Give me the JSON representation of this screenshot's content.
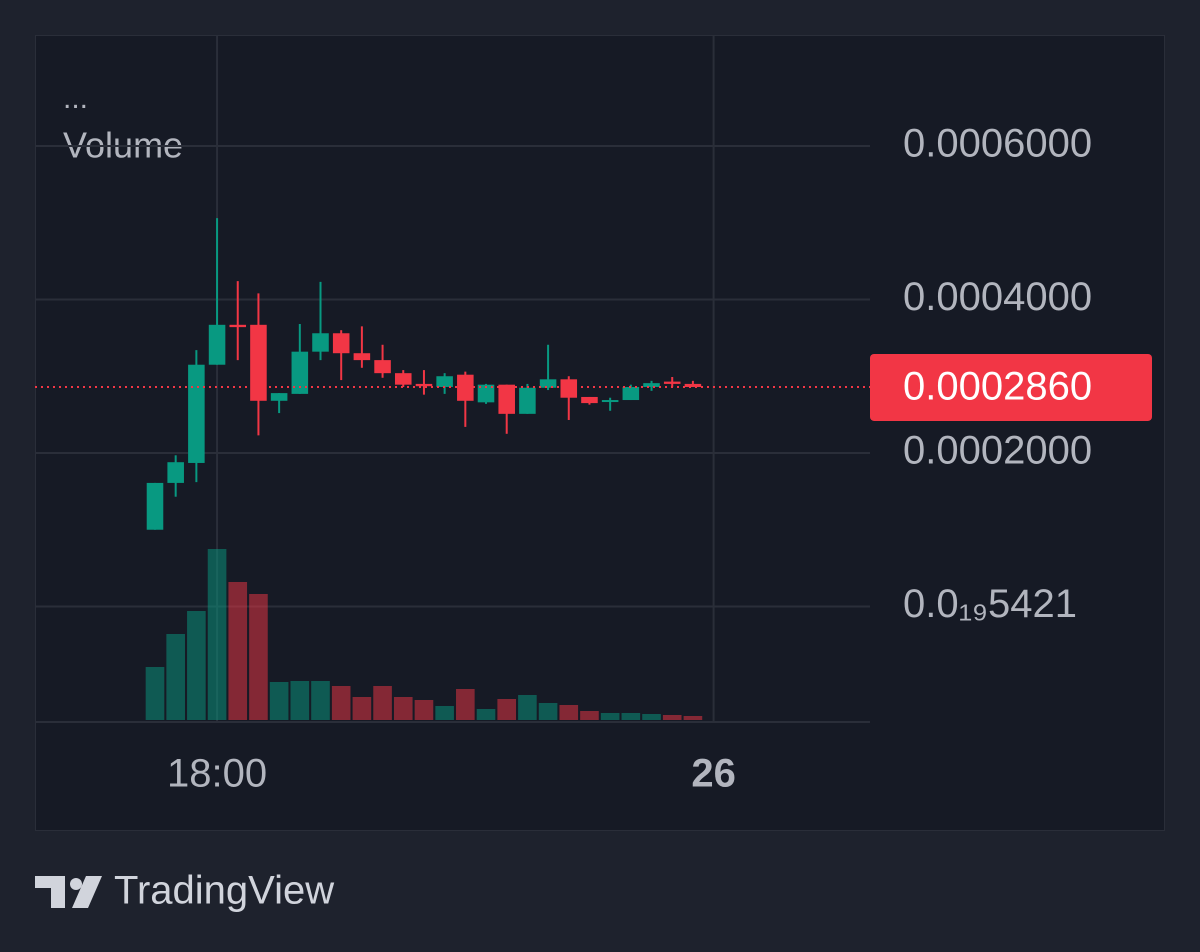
{
  "chart_data": {
    "type": "candlestick",
    "legend_title": "...",
    "volume_label": "Volume",
    "x": [
      0,
      1,
      2,
      3,
      4,
      5,
      6,
      7,
      8,
      9,
      10,
      11,
      12,
      13,
      14,
      15,
      16,
      17,
      18,
      19,
      20,
      21,
      22,
      23,
      24,
      25,
      26
    ],
    "open": [
      0.0001,
      0.000161,
      0.000187,
      0.000315,
      0.000367,
      0.000367,
      0.000268,
      0.000277,
      0.000332,
      0.000356,
      0.00033,
      0.000321,
      0.000304,
      0.00029,
      0.000286,
      0.000302,
      0.000266,
      0.000289,
      0.000251,
      0.000285,
      0.000296,
      0.000273,
      0.000268,
      0.000269,
      0.000286,
      0.000293,
      0.00029
    ],
    "high": [
      0.000161,
      0.000197,
      0.000334,
      0.000506,
      0.000424,
      0.000408,
      0.000278,
      0.000368,
      0.000423,
      0.00036,
      0.000365,
      0.000341,
      0.000308,
      0.000308,
      0.000304,
      0.000306,
      0.00029,
      0.000289,
      0.00029,
      0.000341,
      0.0003,
      0.000273,
      0.000272,
      0.000289,
      0.000294,
      0.000299,
      0.000294
    ],
    "low": [
      0.0001,
      0.000143,
      0.000162,
      0.000315,
      0.000321,
      0.000223,
      0.000252,
      0.000277,
      0.000321,
      0.000295,
      0.000311,
      0.000298,
      0.000286,
      0.000276,
      0.000277,
      0.000234,
      0.000264,
      0.000225,
      0.000251,
      0.000282,
      0.000243,
      0.000263,
      0.000255,
      0.000269,
      0.000281,
      0.000286,
      0.000286
    ],
    "close": [
      0.000161,
      0.000188,
      0.000315,
      0.000367,
      0.000364,
      0.000268,
      0.000278,
      0.000332,
      0.000356,
      0.00033,
      0.000321,
      0.000304,
      0.000289,
      0.000287,
      0.0003,
      0.000268,
      0.000289,
      0.000251,
      0.000285,
      0.000296,
      0.000272,
      0.000265,
      0.000269,
      0.000286,
      0.000291,
      0.00029,
      0.000286
    ],
    "volume": [
      53,
      86,
      109,
      171,
      138,
      126,
      38,
      39,
      39,
      34,
      23,
      34,
      23,
      20,
      14,
      31,
      11,
      21,
      25,
      17,
      15,
      9,
      7,
      7,
      6,
      5,
      4
    ],
    "up_color": "#089981",
    "down_color": "#f23645",
    "xlim": [
      -5.8,
      34.56
    ],
    "xticks": [
      {
        "value": 3,
        "label": "18:00"
      },
      {
        "value": 27,
        "label": "26"
      }
    ],
    "ylim": [
      -0.0001505,
      0.0007446
    ],
    "yticks": [
      {
        "value": 0.0006,
        "label": "0.0006000"
      },
      {
        "value": 0.0004,
        "label": "0.0004000"
      },
      {
        "value": 0.0002,
        "label": "0.0002000"
      },
      {
        "value": 5.421e-21,
        "label": "0.0₁₉5421"
      }
    ],
    "last_price": {
      "value": 0.000286,
      "label": "0.0002860"
    },
    "grid": true
  },
  "footer": {
    "brand": "TradingView"
  }
}
